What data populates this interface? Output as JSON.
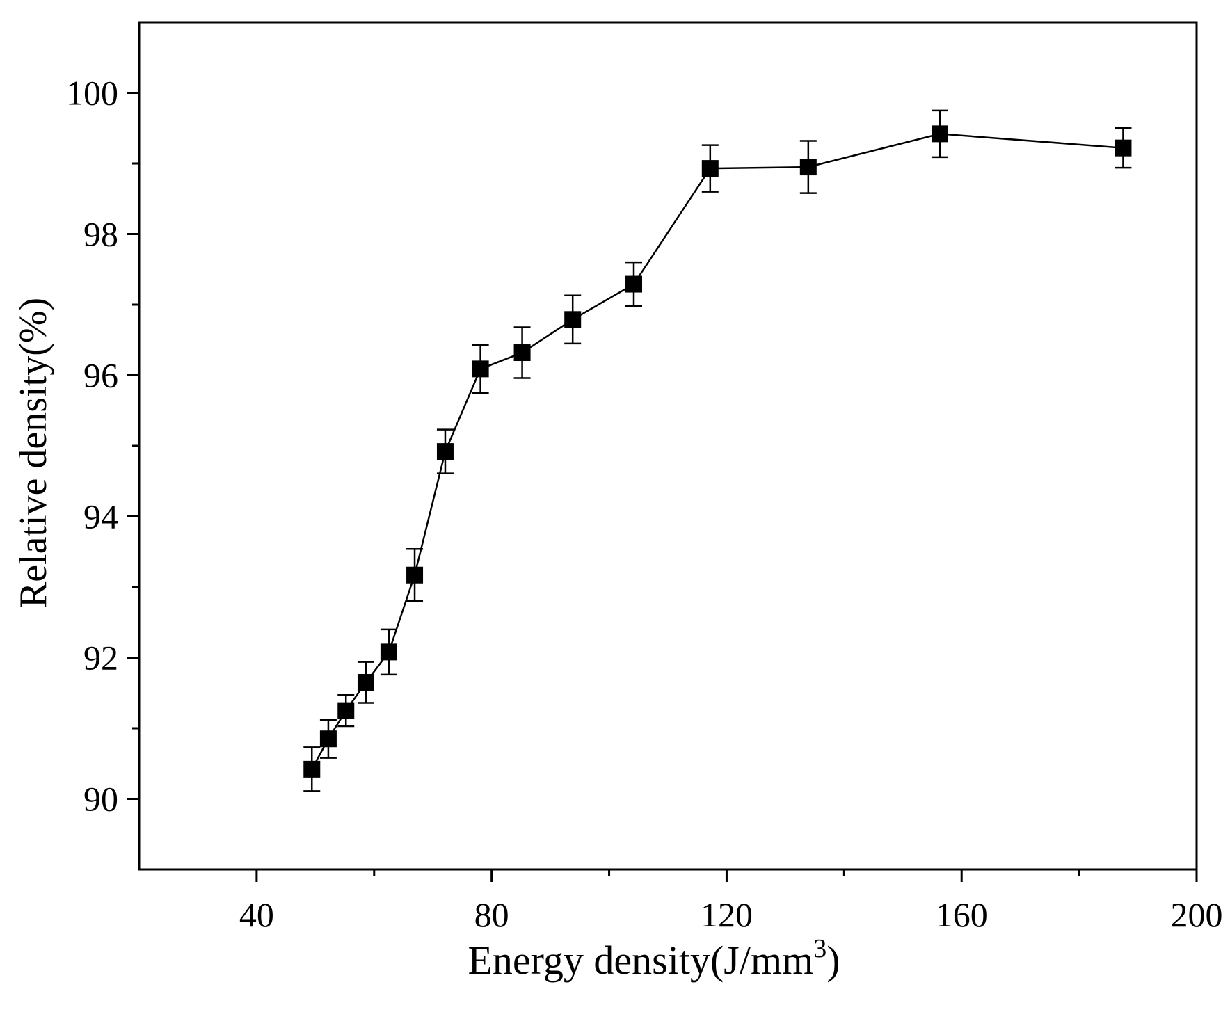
{
  "chart_data": {
    "type": "line",
    "title": "",
    "xlabel": "Energy density(J/mm",
    "xlabel_superscript": "3",
    "xlabel_suffix": ")",
    "ylabel": "Relative density(%)",
    "xlim": [
      20,
      200
    ],
    "ylim": [
      89,
      101
    ],
    "x_major_ticks": [
      40,
      80,
      120,
      160,
      200
    ],
    "x_minor_ticks": [
      60,
      100,
      140,
      180
    ],
    "y_major_ticks": [
      90,
      92,
      94,
      96,
      98,
      100
    ],
    "y_minor_ticks": [
      91,
      93,
      95,
      97,
      99
    ],
    "grid": false,
    "colors": {
      "series": "#000000",
      "axis": "#000000"
    },
    "series": [
      {
        "name": "Relative density",
        "marker": "square",
        "x": [
          49.4,
          52.2,
          55.2,
          58.6,
          62.5,
          66.9,
          72.1,
          78.1,
          85.2,
          93.8,
          104.2,
          117.2,
          133.9,
          156.3,
          187.5
        ],
        "y": [
          90.42,
          90.85,
          91.25,
          91.65,
          92.08,
          93.17,
          94.92,
          96.09,
          96.32,
          96.79,
          97.29,
          98.93,
          98.95,
          99.42,
          99.22
        ],
        "err": [
          0.31,
          0.27,
          0.22,
          0.29,
          0.32,
          0.37,
          0.31,
          0.34,
          0.36,
          0.34,
          0.31,
          0.33,
          0.37,
          0.33,
          0.28
        ]
      }
    ]
  }
}
